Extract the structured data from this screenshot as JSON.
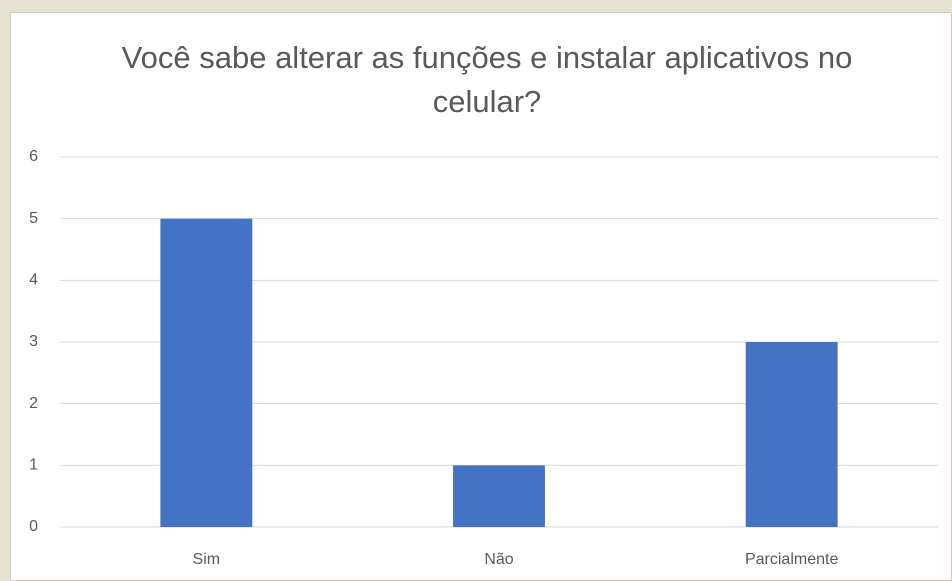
{
  "chart_data": {
    "type": "bar",
    "title": "Você sabe alterar as funções e instalar aplicativos no celular?",
    "categories": [
      "Sim",
      "Não",
      "Parcialmente"
    ],
    "values": [
      5,
      1,
      3
    ],
    "color": "#4472c4",
    "ylim": [
      0,
      6
    ],
    "yticks": [
      0,
      1,
      2,
      3,
      4,
      5,
      6
    ],
    "grid": true
  }
}
